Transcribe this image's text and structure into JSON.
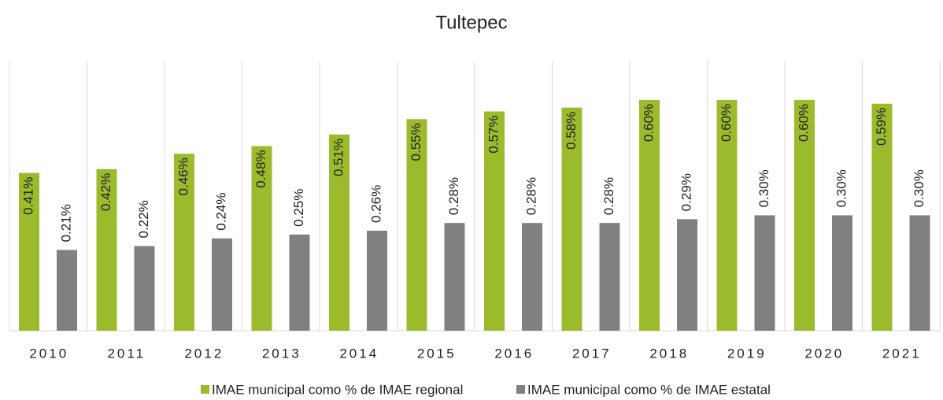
{
  "chart_data": {
    "type": "bar",
    "title": "Tultepec",
    "categories": [
      "2010",
      "2011",
      "2012",
      "2013",
      "2014",
      "2015",
      "2016",
      "2017",
      "2018",
      "2019",
      "2020",
      "2021"
    ],
    "series": [
      {
        "name": "IMAE municipal como % de IMAE regional",
        "color": "#9cbb2c",
        "values": [
          0.41,
          0.42,
          0.46,
          0.48,
          0.51,
          0.55,
          0.57,
          0.58,
          0.6,
          0.6,
          0.6,
          0.59
        ],
        "value_labels": [
          "0.41%",
          "0.42%",
          "0.46%",
          "0.48%",
          "0.51%",
          "0.55%",
          "0.57%",
          "0.58%",
          "0.60%",
          "0.60%",
          "0.60%",
          "0.59%"
        ]
      },
      {
        "name": "IMAE municipal como % de IMAE estatal",
        "color": "#808080",
        "values": [
          0.21,
          0.22,
          0.24,
          0.25,
          0.26,
          0.28,
          0.28,
          0.28,
          0.29,
          0.3,
          0.3,
          0.3
        ],
        "value_labels": [
          "0.21%",
          "0.22%",
          "0.24%",
          "0.25%",
          "0.26%",
          "0.28%",
          "0.28%",
          "0.28%",
          "0.29%",
          "0.30%",
          "0.30%",
          "0.30%"
        ]
      }
    ],
    "ylim": [
      0,
      0.7
    ],
    "legend": "bottom"
  }
}
